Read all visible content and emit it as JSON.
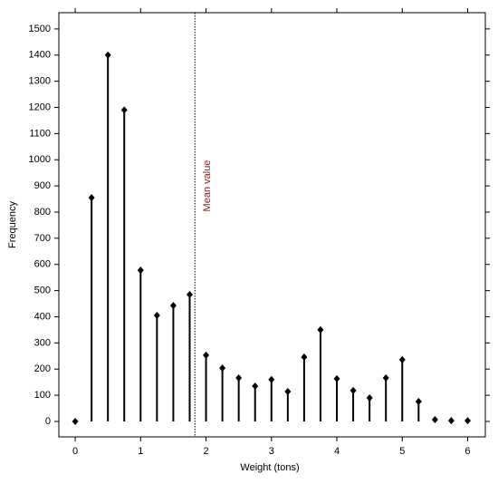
{
  "chart_data": {
    "type": "stem",
    "x_label": "Weight (tons)",
    "y_label": "Frequency",
    "x": [
      0,
      0.25,
      0.5,
      0.75,
      1,
      1.25,
      1.5,
      1.75,
      2,
      2.25,
      2.5,
      2.75,
      3,
      3.25,
      3.5,
      3.75,
      4,
      4.25,
      4.5,
      4.75,
      5,
      5.25,
      5.5,
      5.75,
      6
    ],
    "values": [
      0,
      855,
      1400,
      1190,
      578,
      405,
      443,
      485,
      253,
      204,
      166,
      135,
      160,
      114,
      246,
      350,
      163,
      118,
      90,
      166,
      236,
      76,
      7,
      3,
      3
    ],
    "color": "#000000",
    "mean": 1.83,
    "mean_label": "Mean value",
    "mean_color": "#8b1a1a",
    "xlim": [
      -0.25,
      6.27
    ],
    "xticks": [
      0,
      1,
      2,
      3,
      4,
      5,
      6
    ],
    "ylim": [
      -59,
      1562
    ],
    "yticks": [
      0,
      100,
      200,
      300,
      400,
      500,
      600,
      700,
      800,
      900,
      1000,
      1100,
      1200,
      1300,
      1400,
      1500
    ]
  }
}
